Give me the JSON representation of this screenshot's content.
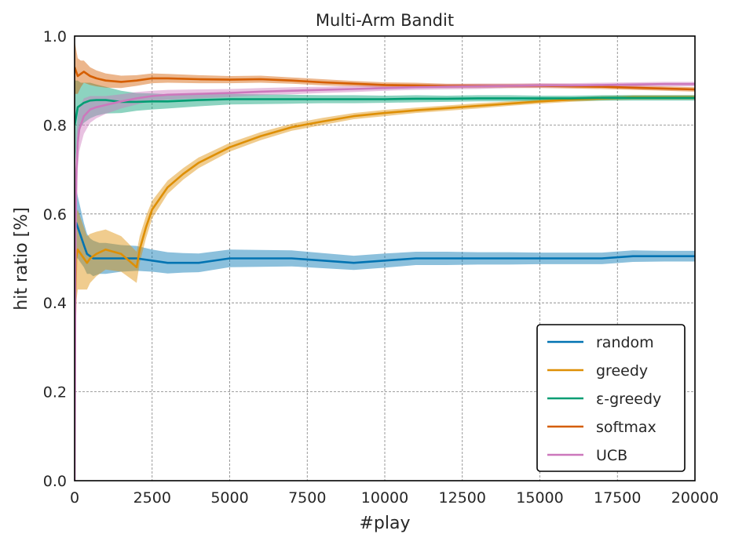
{
  "chart_data": {
    "type": "line",
    "title": "Multi-Arm Bandit",
    "xlabel": "#play",
    "ylabel": "hit ratio [%]",
    "xlim": [
      0,
      20000
    ],
    "ylim": [
      0.0,
      1.0
    ],
    "xticks": [
      "0",
      "2500",
      "5000",
      "7500",
      "10000",
      "12500",
      "15000",
      "17500",
      "20000"
    ],
    "yticks": [
      "0.0",
      "0.2",
      "0.4",
      "0.6",
      "0.8",
      "1.0"
    ],
    "grid": true,
    "legend_position": "lower right",
    "series": [
      {
        "name": "random",
        "color": "#0173b2",
        "x": [
          0,
          50,
          100,
          200,
          300,
          400,
          500,
          600,
          800,
          1000,
          1500,
          2000,
          2500,
          3000,
          3500,
          4000,
          5000,
          6000,
          7000,
          8000,
          9000,
          10000,
          11000,
          12000,
          13000,
          14000,
          15000,
          16000,
          17000,
          18000,
          19000,
          20000
        ],
        "y": [
          0.56,
          0.58,
          0.57,
          0.55,
          0.53,
          0.51,
          0.505,
          0.5,
          0.5,
          0.5,
          0.5,
          0.5,
          0.495,
          0.49,
          0.49,
          0.49,
          0.5,
          0.5,
          0.5,
          0.495,
          0.49,
          0.495,
          0.5,
          0.5,
          0.5,
          0.5,
          0.5,
          0.5,
          0.5,
          0.505,
          0.505,
          0.505
        ],
        "band": [
          0.09,
          0.08,
          0.07,
          0.06,
          0.05,
          0.045,
          0.04,
          0.04,
          0.035,
          0.035,
          0.03,
          0.028,
          0.025,
          0.024,
          0.022,
          0.021,
          0.02,
          0.019,
          0.018,
          0.017,
          0.016,
          0.016,
          0.015,
          0.015,
          0.014,
          0.014,
          0.013,
          0.013,
          0.013,
          0.013,
          0.012,
          0.012
        ]
      },
      {
        "name": "greedy",
        "color": "#de8f05",
        "x": [
          0,
          50,
          100,
          200,
          300,
          400,
          500,
          700,
          1000,
          1500,
          2000,
          2100,
          2300,
          2500,
          3000,
          3500,
          4000,
          5000,
          6000,
          7000,
          8000,
          9000,
          10000,
          11000,
          12000,
          13000,
          14000,
          15000,
          16000,
          17000,
          18000,
          19000,
          20000
        ],
        "y": [
          0.3,
          0.5,
          0.52,
          0.51,
          0.5,
          0.49,
          0.5,
          0.51,
          0.52,
          0.51,
          0.48,
          0.52,
          0.57,
          0.61,
          0.66,
          0.69,
          0.715,
          0.75,
          0.775,
          0.795,
          0.808,
          0.82,
          0.827,
          0.833,
          0.838,
          0.843,
          0.848,
          0.853,
          0.857,
          0.86,
          0.862,
          0.862,
          0.862
        ],
        "band": [
          0.12,
          0.1,
          0.09,
          0.08,
          0.07,
          0.06,
          0.055,
          0.05,
          0.045,
          0.04,
          0.035,
          0.03,
          0.025,
          0.02,
          0.015,
          0.013,
          0.012,
          0.01,
          0.009,
          0.008,
          0.008,
          0.007,
          0.007,
          0.006,
          0.006,
          0.006,
          0.005,
          0.005,
          0.005,
          0.005,
          0.005,
          0.005,
          0.005
        ]
      },
      {
        "name": "ε-greedy",
        "color": "#029e73",
        "x": [
          0,
          50,
          100,
          200,
          300,
          500,
          700,
          1000,
          1500,
          2000,
          2500,
          3000,
          4000,
          5000,
          6000,
          7000,
          8000,
          9000,
          10000,
          11000,
          12000,
          13000,
          14000,
          15000,
          16000,
          17000,
          18000,
          19000,
          20000
        ],
        "y": [
          0.8,
          0.82,
          0.84,
          0.845,
          0.85,
          0.855,
          0.856,
          0.856,
          0.852,
          0.852,
          0.853,
          0.853,
          0.856,
          0.858,
          0.858,
          0.858,
          0.858,
          0.858,
          0.858,
          0.859,
          0.859,
          0.86,
          0.86,
          0.86,
          0.86,
          0.861,
          0.861,
          0.861,
          0.861
        ],
        "band": [
          0.1,
          0.08,
          0.06,
          0.05,
          0.045,
          0.04,
          0.035,
          0.03,
          0.025,
          0.02,
          0.018,
          0.016,
          0.014,
          0.012,
          0.011,
          0.01,
          0.009,
          0.009,
          0.008,
          0.008,
          0.007,
          0.007,
          0.007,
          0.006,
          0.006,
          0.006,
          0.006,
          0.006,
          0.006
        ]
      },
      {
        "name": "softmax",
        "color": "#d55e00",
        "x": [
          0,
          50,
          100,
          200,
          300,
          500,
          700,
          1000,
          1500,
          2000,
          2500,
          3000,
          4000,
          5000,
          6000,
          7000,
          8000,
          9000,
          10000,
          11000,
          12000,
          13000,
          14000,
          15000,
          16000,
          17000,
          18000,
          19000,
          20000
        ],
        "y": [
          0.93,
          0.92,
          0.91,
          0.915,
          0.92,
          0.91,
          0.905,
          0.9,
          0.897,
          0.9,
          0.905,
          0.905,
          0.903,
          0.902,
          0.903,
          0.9,
          0.896,
          0.893,
          0.89,
          0.889,
          0.888,
          0.888,
          0.888,
          0.888,
          0.887,
          0.886,
          0.884,
          0.882,
          0.88
        ],
        "band": [
          0.06,
          0.05,
          0.04,
          0.03,
          0.025,
          0.02,
          0.018,
          0.016,
          0.014,
          0.012,
          0.011,
          0.01,
          0.009,
          0.008,
          0.008,
          0.007,
          0.007,
          0.006,
          0.006,
          0.006,
          0.005,
          0.005,
          0.005,
          0.005,
          0.005,
          0.005,
          0.005,
          0.005,
          0.005
        ]
      },
      {
        "name": "UCB",
        "color": "#cc78bc",
        "x": [
          0,
          30,
          60,
          100,
          150,
          200,
          300,
          500,
          700,
          1000,
          1500,
          2000,
          2500,
          3000,
          4000,
          5000,
          6000,
          7000,
          8000,
          9000,
          10000,
          11000,
          12000,
          13000,
          14000,
          15000,
          16000,
          17000,
          18000,
          19000,
          20000
        ],
        "y": [
          0.0,
          0.55,
          0.7,
          0.76,
          0.79,
          0.8,
          0.82,
          0.835,
          0.84,
          0.845,
          0.853,
          0.86,
          0.865,
          0.868,
          0.87,
          0.872,
          0.875,
          0.877,
          0.879,
          0.881,
          0.883,
          0.885,
          0.886,
          0.887,
          0.888,
          0.889,
          0.889,
          0.89,
          0.891,
          0.892,
          0.892
        ],
        "band": [
          0.0,
          0.1,
          0.08,
          0.06,
          0.05,
          0.045,
          0.04,
          0.03,
          0.025,
          0.02,
          0.016,
          0.014,
          0.012,
          0.011,
          0.01,
          0.009,
          0.008,
          0.008,
          0.007,
          0.007,
          0.006,
          0.006,
          0.006,
          0.006,
          0.005,
          0.005,
          0.005,
          0.005,
          0.005,
          0.005,
          0.005
        ]
      }
    ]
  }
}
